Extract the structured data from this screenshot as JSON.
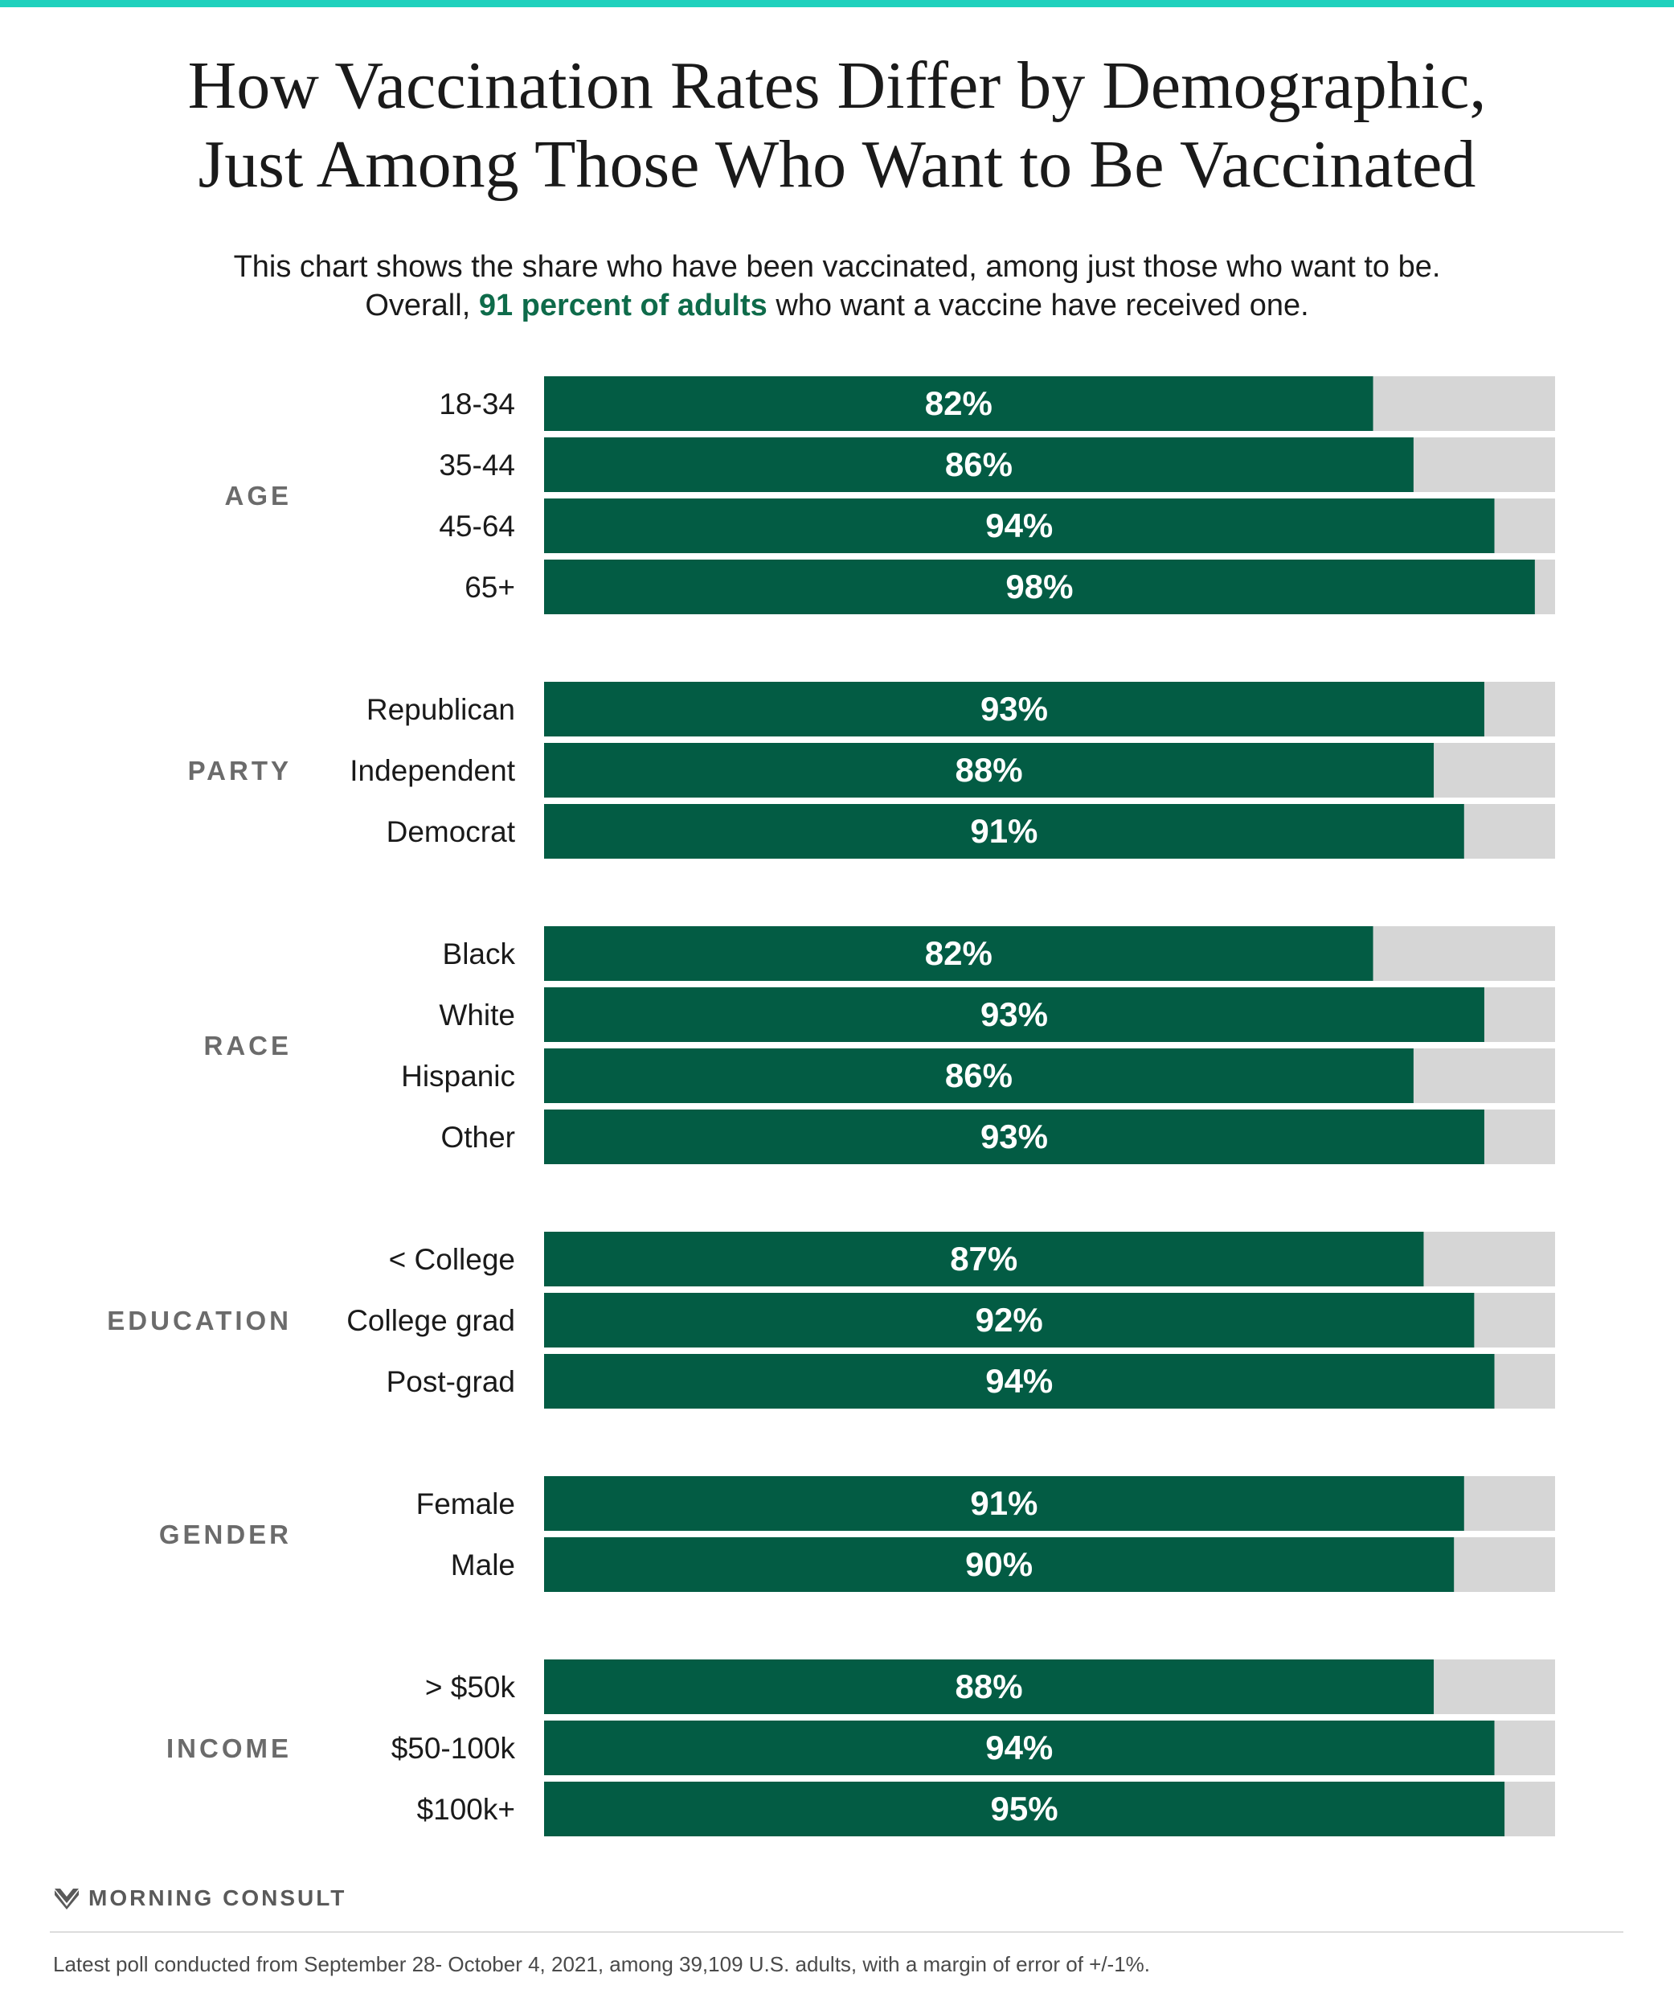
{
  "title_line1": "How Vaccination Rates Differ by Demographic,",
  "title_line2": "Just Among Those Who Want to Be Vaccinated",
  "subtitle_line1": "This chart shows the share who have been vaccinated, among just those who want to be.",
  "subtitle_line2_pre": "Overall, ",
  "subtitle_line2_hl": "91 percent of adults",
  "subtitle_line2_post": " who want a vaccine have received one.",
  "brand_name": "MORNING CONSULT",
  "footnote": "Latest poll conducted from September 28- October 4, 2021, among 39,109 U.S. adults, with a margin of error of +/-1%.",
  "colors": {
    "bar": "#035c44",
    "track": "#d6d6d6",
    "accent_rule": "#1fd1bd",
    "group_label": "#6b6b6b",
    "highlight": "#0e6b4a"
  },
  "chart_data": {
    "type": "bar",
    "orientation": "horizontal",
    "xlim": [
      0,
      100
    ],
    "grid": false,
    "groups": [
      {
        "name": "AGE",
        "categories": [
          "18-34",
          "35-44",
          "45-64",
          "65+"
        ],
        "values": [
          82,
          86,
          94,
          98
        ],
        "labels": [
          "82%",
          "86%",
          "94%",
          "98%"
        ]
      },
      {
        "name": "PARTY",
        "categories": [
          "Republican",
          "Independent",
          "Democrat"
        ],
        "values": [
          93,
          88,
          91
        ],
        "labels": [
          "93%",
          "88%",
          "91%"
        ]
      },
      {
        "name": "RACE",
        "categories": [
          "Black",
          "White",
          "Hispanic",
          "Other"
        ],
        "values": [
          82,
          93,
          86,
          93
        ],
        "labels": [
          "82%",
          "93%",
          "86%",
          "93%"
        ]
      },
      {
        "name": "EDUCATION",
        "categories": [
          "< College",
          "College grad",
          "Post-grad"
        ],
        "values": [
          87,
          92,
          94
        ],
        "labels": [
          "87%",
          "92%",
          "94%"
        ]
      },
      {
        "name": "GENDER",
        "categories": [
          "Female",
          "Male"
        ],
        "values": [
          91,
          90
        ],
        "labels": [
          "91%",
          "90%"
        ]
      },
      {
        "name": "INCOME",
        "categories": [
          "> $50k",
          "$50-100k",
          "$100k+"
        ],
        "values": [
          88,
          94,
          95
        ],
        "labels": [
          "88%",
          "94%",
          "95%"
        ]
      }
    ]
  }
}
